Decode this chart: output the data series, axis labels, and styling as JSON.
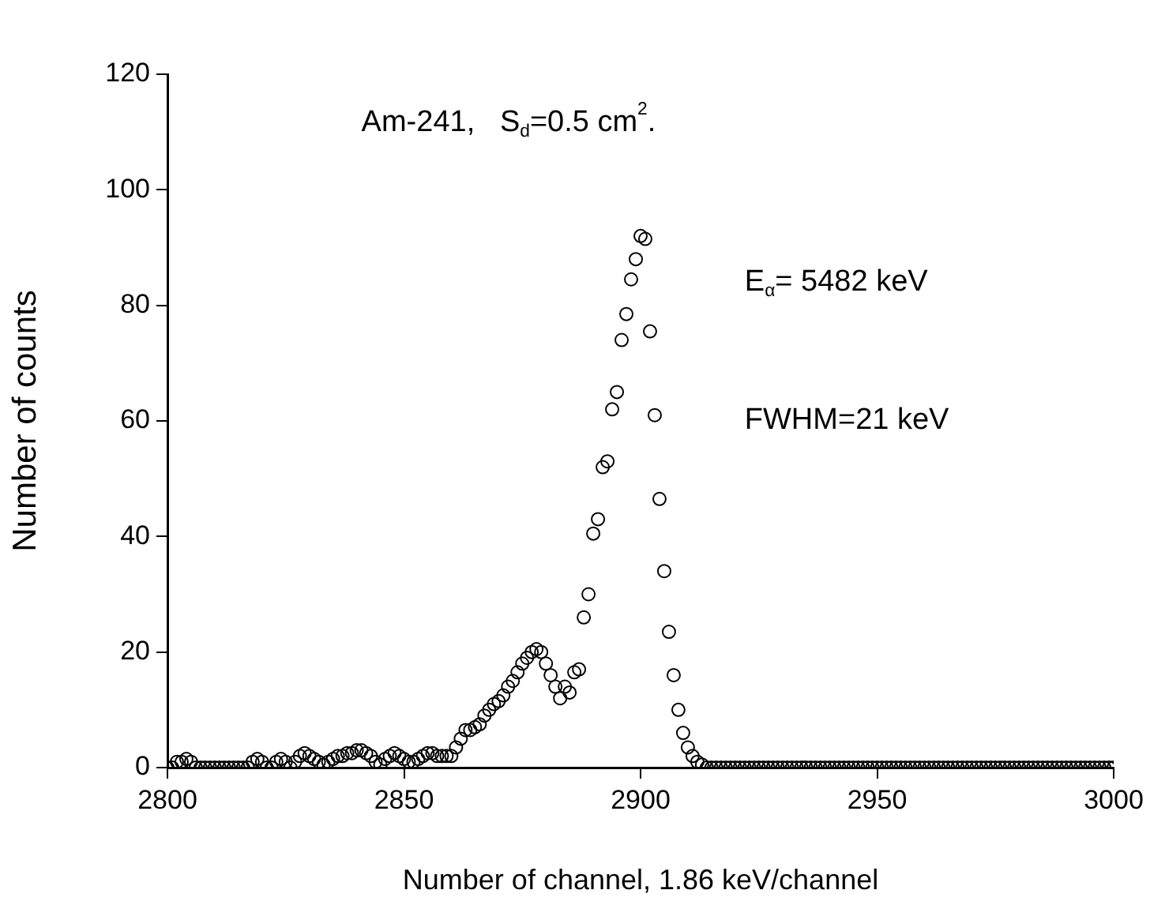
{
  "chart_data": {
    "type": "scatter",
    "xlabel": "Number of channel, 1.86 keV/channel",
    "ylabel": "Number of counts",
    "annotations": [
      "Am-241,   S$_{d}$=0.5 cm$^{2}$.",
      "E$_{α}$= 5482 keV",
      "FWHM=21 keV"
    ],
    "xlim": [
      2800,
      3000
    ],
    "xticks": [
      2800,
      2850,
      2900,
      2950,
      3000
    ],
    "ylim": [
      0,
      120
    ],
    "yticks": [
      0,
      20,
      40,
      60,
      80,
      100,
      120
    ],
    "grid": false,
    "legend": false,
    "marker": "circle",
    "series": [
      {
        "color": "#000000",
        "x": [
          2800,
          2801,
          2802,
          2803,
          2804,
          2805,
          2806,
          2807,
          2808,
          2809,
          2810,
          2811,
          2812,
          2813,
          2814,
          2815,
          2816,
          2817,
          2818,
          2819,
          2820,
          2821,
          2822,
          2823,
          2824,
          2825,
          2826,
          2827,
          2828,
          2829,
          2830,
          2831,
          2832,
          2833,
          2834,
          2835,
          2836,
          2837,
          2838,
          2839,
          2840,
          2841,
          2842,
          2843,
          2844,
          2845,
          2846,
          2847,
          2848,
          2849,
          2850,
          2851,
          2852,
          2853,
          2854,
          2855,
          2856,
          2857,
          2858,
          2859,
          2860,
          2861,
          2862,
          2863,
          2864,
          2865,
          2866,
          2867,
          2868,
          2869,
          2870,
          2871,
          2872,
          2873,
          2874,
          2875,
          2876,
          2877,
          2878,
          2879,
          2880,
          2881,
          2882,
          2883,
          2884,
          2885,
          2886,
          2887,
          2888,
          2889,
          2890,
          2891,
          2892,
          2893,
          2894,
          2895,
          2896,
          2897,
          2898,
          2899,
          2900,
          2901,
          2902,
          2903,
          2904,
          2905,
          2906,
          2907,
          2908,
          2909,
          2910,
          2911,
          2912,
          2913,
          2914,
          2915,
          2916,
          2917,
          2918,
          2919,
          2920,
          2921,
          2922,
          2923,
          2924,
          2925,
          2926,
          2927,
          2928,
          2929,
          2930,
          2931,
          2932,
          2933,
          2934,
          2935,
          2936,
          2937,
          2938,
          2939,
          2940,
          2941,
          2942,
          2943,
          2944,
          2945,
          2946,
          2947,
          2948,
          2949,
          2950,
          2951,
          2952,
          2953,
          2954,
          2955,
          2956,
          2957,
          2958,
          2959,
          2960,
          2961,
          2962,
          2963,
          2964,
          2965,
          2966,
          2967,
          2968,
          2969,
          2970,
          2971,
          2972,
          2973,
          2974,
          2975,
          2976,
          2977,
          2978,
          2979,
          2980,
          2981,
          2982,
          2983,
          2984,
          2985,
          2986,
          2987,
          2988,
          2989,
          2990,
          2991,
          2992,
          2993,
          2994,
          2995,
          2996,
          2997,
          2998,
          2999,
          3000
        ],
        "values": [
          0,
          0,
          1,
          1,
          1.5,
          1,
          0,
          0,
          0,
          0,
          0,
          0,
          0,
          0,
          0,
          0,
          0,
          0,
          1,
          1.5,
          1,
          0,
          0,
          1,
          1.5,
          1,
          0,
          1,
          2,
          2.5,
          2,
          1.5,
          1,
          0.5,
          1,
          1.5,
          2,
          2,
          2.5,
          2.5,
          3,
          3,
          2.5,
          2,
          1,
          0.5,
          1.5,
          2,
          2.5,
          2,
          1.5,
          1,
          1,
          1.5,
          2,
          2.5,
          2.5,
          2,
          2,
          2,
          2,
          3.5,
          5,
          6.5,
          6.5,
          7,
          7.5,
          9,
          10,
          11,
          11.5,
          12.5,
          14,
          15,
          16.5,
          18,
          19,
          20,
          20.5,
          20,
          18,
          16,
          14,
          12,
          14,
          13,
          16.5,
          17,
          26,
          30,
          40.5,
          43,
          52,
          53,
          62,
          65,
          74,
          78.5,
          84.5,
          88,
          92,
          91.5,
          75.5,
          61,
          46.5,
          34,
          23.5,
          16,
          10,
          6,
          3.5,
          2,
          1,
          0.5,
          0,
          0,
          0,
          0,
          0,
          0,
          0,
          0,
          0,
          0,
          0,
          0,
          0,
          0,
          0,
          0,
          0,
          0,
          0,
          0,
          0,
          0,
          0,
          0,
          0,
          0,
          0,
          0,
          0,
          0,
          0,
          0,
          0,
          0,
          0,
          0,
          0,
          0,
          0,
          0,
          0,
          0,
          0,
          0,
          0,
          0,
          0,
          0,
          0,
          0,
          0,
          0,
          0,
          0,
          0,
          0,
          0,
          0,
          0,
          0,
          0,
          0,
          0,
          0,
          0,
          0,
          0,
          0,
          0,
          0,
          0,
          0,
          0,
          0,
          0,
          0,
          0,
          0,
          0,
          0,
          0,
          0,
          0,
          0,
          0,
          0,
          0
        ]
      }
    ]
  }
}
